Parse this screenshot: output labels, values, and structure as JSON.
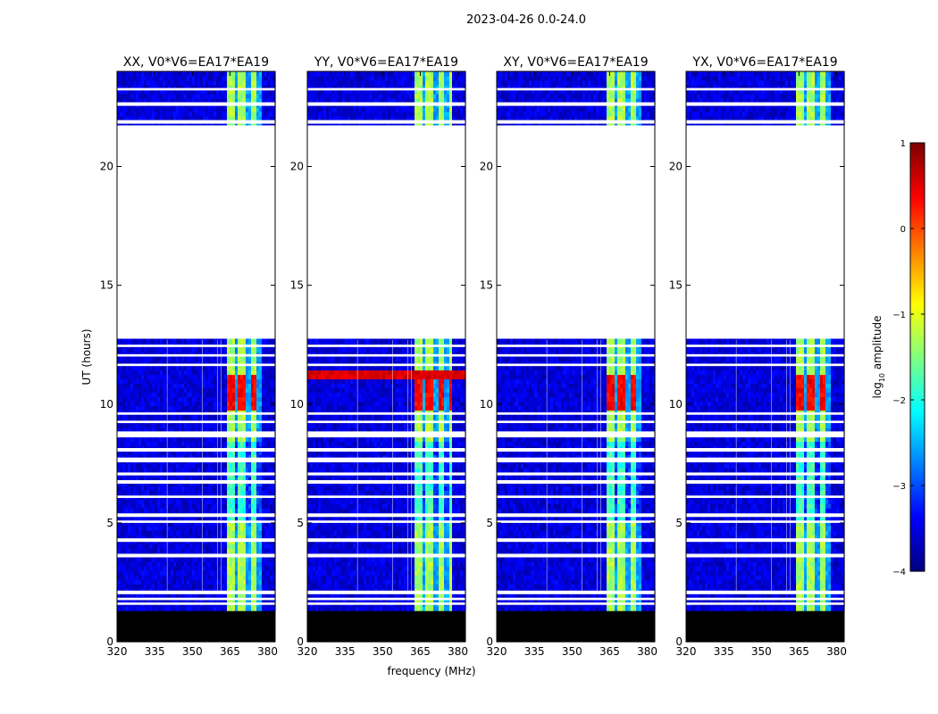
{
  "figure": {
    "suptitle": "2023-04-26 0.0-24.0"
  },
  "chart_data": {
    "type": "heatmap",
    "x_label": "frequency (MHz)",
    "y_label": "UT (hours)",
    "xlim": [
      320,
      383
    ],
    "ylim": [
      0,
      24
    ],
    "x_ticks": [
      320,
      335,
      350,
      365,
      380
    ],
    "y_ticks": [
      0,
      5,
      10,
      15,
      20
    ],
    "panels": [
      {
        "title": "XX, V0*V6=EA17*EA19",
        "pol": "XX",
        "rfi_band_MHz": [
          364,
          378
        ],
        "flare_UT": [
          9.7,
          11.3
        ]
      },
      {
        "title": "YY, V0*V6=EA17*EA19",
        "pol": "YY",
        "rfi_band_MHz": [
          363,
          378
        ],
        "flare_UT": [
          9.7,
          11.3
        ]
      },
      {
        "title": "XY, V0*V6=EA17*EA19",
        "pol": "XY",
        "rfi_band_MHz": [
          364,
          378
        ],
        "flare_UT": [
          9.7,
          11.3
        ]
      },
      {
        "title": "YX, V0*V6=EA17*EA19",
        "pol": "YX",
        "rfi_band_MHz": [
          364,
          378
        ],
        "flare_UT": [
          9.7,
          11.3
        ]
      }
    ],
    "data_gaps_UT": [
      [
        12.8,
        21.7
      ]
    ],
    "flagged_UT": [
      [
        0.0,
        1.4
      ]
    ],
    "colorbar": {
      "label": "log10 amplitude",
      "label_main": "log",
      "label_sub": "10",
      "label_rest": " amplitude",
      "vmin": -4,
      "vmax": 1,
      "ticks": [
        -4,
        -3,
        -2,
        -1,
        0,
        1
      ],
      "tick_labels": [
        "−4",
        "−3",
        "−2",
        "−1",
        "0",
        "1"
      ],
      "colormap": "jet"
    }
  }
}
